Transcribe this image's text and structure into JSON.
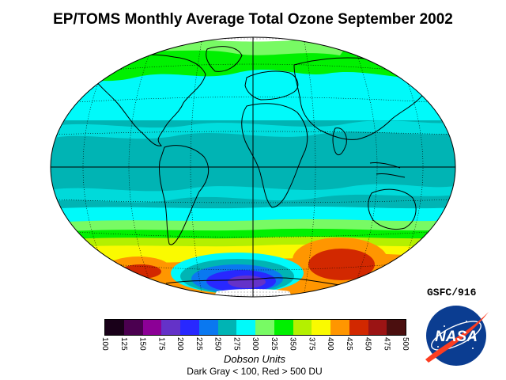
{
  "title": "EP/TOMS Monthly Average Total Ozone September 2002",
  "credit": "GSFC/916",
  "legend": {
    "units_label": "Dobson Units",
    "range_note": "Dark Gray < 100, Red > 500 DU",
    "ticks": [
      "100",
      "125",
      "150",
      "175",
      "200",
      "225",
      "250",
      "275",
      "300",
      "325",
      "350",
      "375",
      "400",
      "425",
      "450",
      "475",
      "500"
    ],
    "colors": [
      "#190019",
      "#4b0050",
      "#8c0096",
      "#6432c8",
      "#2828ff",
      "#0a78f0",
      "#00b4b4",
      "#00fafa",
      "#78fa64",
      "#00f000",
      "#b4f000",
      "#fafa00",
      "#ff9600",
      "#d22800",
      "#9b1414",
      "#4b0f0f"
    ]
  },
  "logo": {
    "text": "NASA",
    "icon": "nasa-meatball-logo"
  },
  "map": {
    "projection": "Hammer-Aitoff",
    "bands": [
      {
        "region": "north-polar",
        "color": "#00f000"
      },
      {
        "region": "north-mid-latitude",
        "color": "#00fafa"
      },
      {
        "region": "tropics",
        "color": "#00b4b4"
      },
      {
        "region": "south-mid-latitude",
        "color": "#00fafa"
      },
      {
        "region": "south-high-latitude",
        "color": "#fafa00"
      },
      {
        "region": "south-polar-collar",
        "color": "#ff9600"
      },
      {
        "region": "ozone-hole",
        "color": "#2828ff"
      },
      {
        "region": "ozone-maximum",
        "color": "#d22800"
      }
    ]
  }
}
